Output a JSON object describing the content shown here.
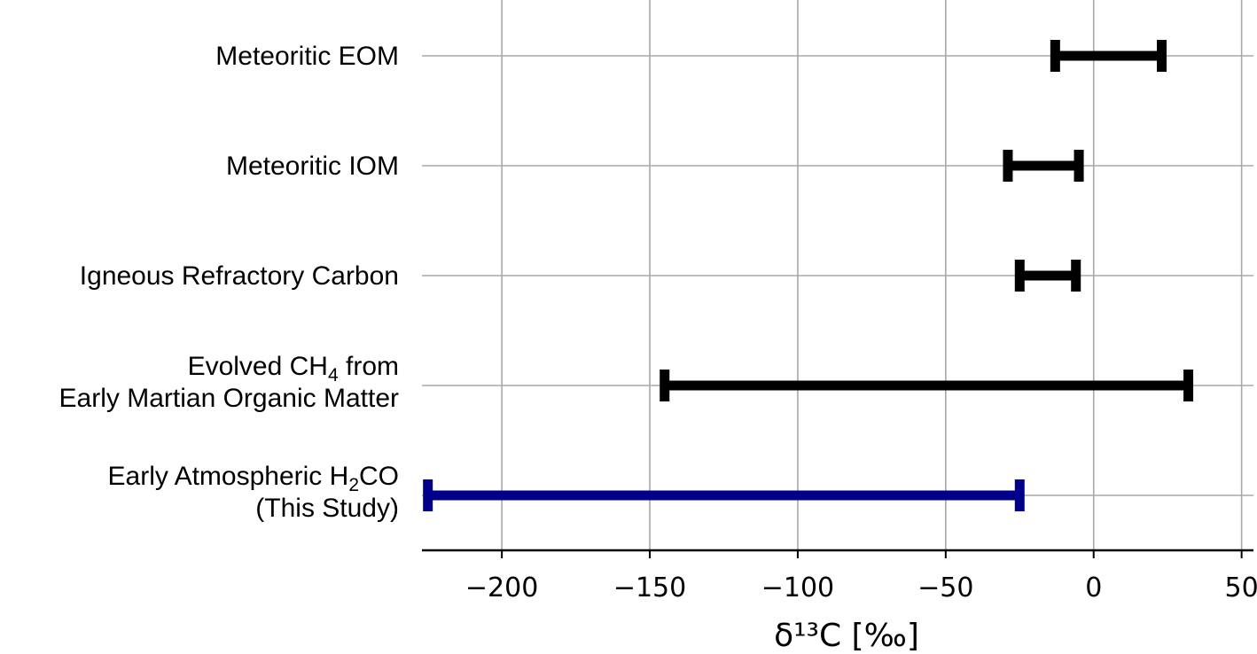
{
  "chart_data": {
    "type": "range",
    "xlabel": "δ¹³C [‰]",
    "xlim": [
      -227,
      54
    ],
    "x_ticks": [
      {
        "value": -200,
        "label": "−200"
      },
      {
        "value": -150,
        "label": "−150"
      },
      {
        "value": -100,
        "label": "−100"
      },
      {
        "value": -50,
        "label": "−50"
      },
      {
        "value": 0,
        "label": "0"
      },
      {
        "value": 50,
        "label": "50"
      }
    ],
    "grid": true,
    "categories": [
      {
        "lines": [
          [
            {
              "t": "Meteoritic EOM"
            }
          ]
        ],
        "range": [
          -13,
          23
        ],
        "color": "#000000"
      },
      {
        "lines": [
          [
            {
              "t": "Meteoritic IOM"
            }
          ]
        ],
        "range": [
          -29,
          -5
        ],
        "color": "#000000"
      },
      {
        "lines": [
          [
            {
              "t": "Igneous Refractory Carbon"
            }
          ]
        ],
        "range": [
          -25,
          -6
        ],
        "color": "#000000"
      },
      {
        "lines": [
          [
            {
              "t": "Evolved CH"
            },
            {
              "t": "4",
              "sub": true
            },
            {
              "t": " from"
            }
          ],
          [
            {
              "t": "Early Martian Organic Matter"
            }
          ]
        ],
        "range": [
          -145,
          32
        ],
        "color": "#000000"
      },
      {
        "lines": [
          [
            {
              "t": "Early Atmospheric H"
            },
            {
              "t": "2",
              "sub": true
            },
            {
              "t": "CO"
            }
          ],
          [
            {
              "t": "(This Study)"
            }
          ]
        ],
        "range": [
          -225,
          -25
        ],
        "color": "#00008b"
      }
    ]
  }
}
